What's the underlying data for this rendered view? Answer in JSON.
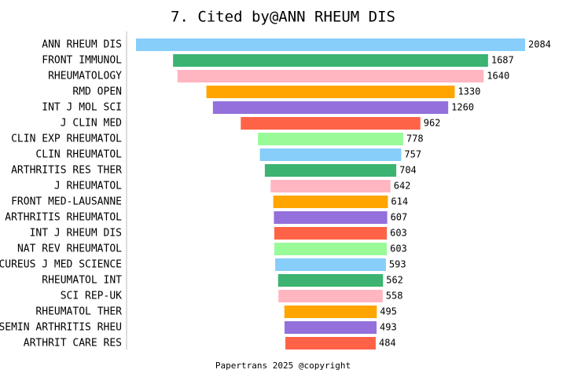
{
  "chart_data": {
    "type": "funnel",
    "title": "7. Cited by@ANN RHEUM DIS",
    "footer": "Papertrans 2025 @copyright",
    "categories": [
      "ANN RHEUM DIS",
      "FRONT IMMUNOL",
      "RHEUMATOLOGY",
      "RMD OPEN",
      "INT J MOL SCI",
      "J CLIN MED",
      "CLIN EXP RHEUMATOL",
      "CLIN RHEUMATOL",
      "ARTHRITIS RES THER",
      "J RHEUMATOL",
      "FRONT MED-LAUSANNE",
      "ARTHRITIS RHEUMATOL",
      "INT J RHEUM DIS",
      "NAT REV RHEUMATOL",
      "CUREUS J MED SCIENCE",
      "RHEUMATOL INT",
      "SCI REP-UK",
      "RHEUMATOL THER",
      "SEMIN ARTHRITIS RHEU",
      "ARTHRIT CARE RES"
    ],
    "values": [
      2084,
      1687,
      1640,
      1330,
      1260,
      962,
      778,
      757,
      704,
      642,
      614,
      607,
      603,
      603,
      593,
      562,
      558,
      495,
      493,
      484
    ],
    "colors": [
      "#87cefa",
      "#3cb371",
      "#ffb6c1",
      "#ffa500",
      "#9370db",
      "#ff6347",
      "#98fb98",
      "#87cefa",
      "#3cb371",
      "#ffb6c1",
      "#ffa500",
      "#9370db",
      "#ff6347",
      "#98fb98",
      "#87cefa",
      "#3cb371",
      "#ffb6c1",
      "#ffa500",
      "#9370db",
      "#ff6347"
    ]
  }
}
